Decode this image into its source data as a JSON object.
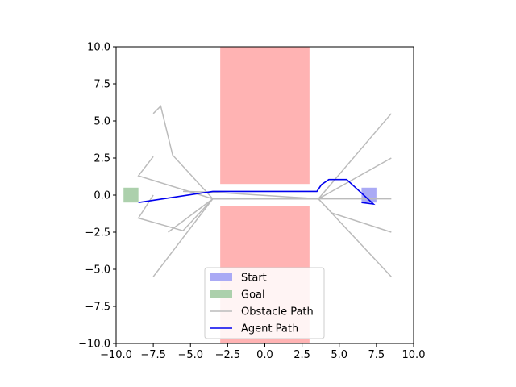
{
  "chart_data": {
    "type": "line",
    "xlim": [
      -10,
      10
    ],
    "ylim": [
      -10,
      10
    ],
    "xticks": [
      -10,
      -7.5,
      -5,
      -2.5,
      0,
      2.5,
      5,
      7.5,
      10
    ],
    "yticks": [
      -10,
      -7.5,
      -5,
      -2.5,
      0,
      2.5,
      5,
      7.5,
      10
    ],
    "xtick_labels": [
      "−10.0",
      "−7.5",
      "−5.0",
      "−2.5",
      "0.0",
      "2.5",
      "5.0",
      "7.5",
      "10.0"
    ],
    "ytick_labels": [
      "−10.0",
      "−7.5",
      "−5.0",
      "−2.5",
      "0.0",
      "2.5",
      "5.0",
      "7.5",
      "10.0"
    ],
    "grid": false,
    "legend_position": "lower-center",
    "obstacles": [
      {
        "x": [
          -3,
          3
        ],
        "y": [
          0.75,
          10
        ],
        "color": "#ffb3b3"
      },
      {
        "x": [
          -3,
          3
        ],
        "y": [
          -10,
          -0.75
        ],
        "color": "#ffb3b3"
      }
    ],
    "start": {
      "x": [
        6.5,
        7.5
      ],
      "y": [
        -0.5,
        0.5
      ],
      "color": "#aaaaf5",
      "label": "Start"
    },
    "goal": {
      "x": [
        -9.5,
        -8.5
      ],
      "y": [
        -0.5,
        0.5
      ],
      "color": "#acd0ac",
      "label": "Goal"
    },
    "obstacle_paths": {
      "label": "Obstacle Path",
      "color": "#bbbbbb",
      "paths": [
        {
          "x": [
            -7.5,
            -7.0,
            -6.2,
            -3.5,
            3.6,
            8.5
          ],
          "y": [
            5.5,
            6.0,
            2.7,
            -0.25,
            -0.25,
            5.5
          ]
        },
        {
          "x": [
            -7.5,
            -8.5,
            -3.5,
            3.6,
            8.5
          ],
          "y": [
            2.6,
            1.3,
            -0.25,
            -0.25,
            2.5
          ]
        },
        {
          "x": [
            -7.5,
            -8.5,
            -5.5,
            -3.5,
            3.6,
            8.5
          ],
          "y": [
            0.0,
            -1.55,
            -2.4,
            -0.25,
            -0.25,
            -0.25
          ]
        },
        {
          "x": [
            -6.5,
            -3.5,
            3.6,
            4.5,
            8.5
          ],
          "y": [
            -2.5,
            -0.25,
            -0.25,
            -1.2,
            -2.5
          ]
        },
        {
          "x": [
            -7.5,
            -3.5,
            3.6,
            8.5
          ],
          "y": [
            -5.5,
            -0.25,
            -0.25,
            -5.5
          ]
        },
        {
          "x": [
            -5.5,
            -3.5,
            3.6
          ],
          "y": [
            0.25,
            0.2,
            -0.25
          ]
        }
      ]
    },
    "agent_path": {
      "label": "Agent Path",
      "color": "#0000ee",
      "x": [
        -8.5,
        -3.5,
        3.5,
        3.8,
        4.3,
        5.5,
        7.3,
        6.5
      ],
      "y": [
        -0.5,
        0.25,
        0.25,
        0.7,
        1.05,
        1.05,
        -0.6,
        -0.5
      ]
    }
  }
}
